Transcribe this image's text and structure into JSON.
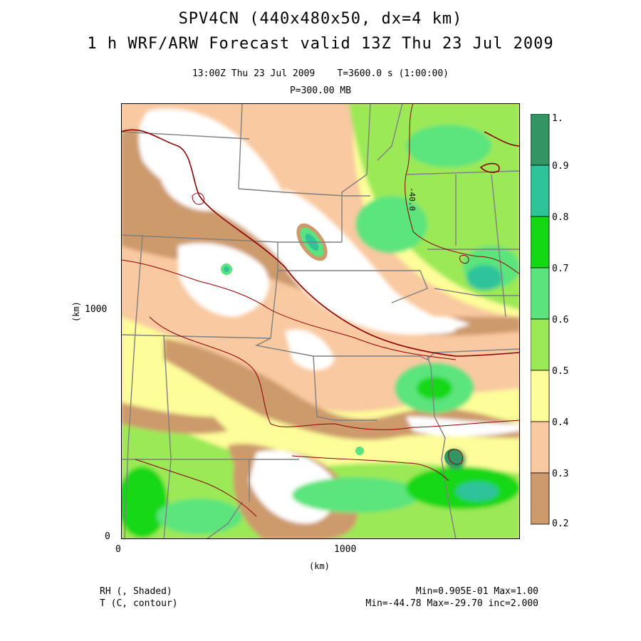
{
  "header": {
    "title_line1": "SPV4CN (440x480x50, dx=4 km)",
    "title_line2": "1 h WRF/ARW Forecast valid 13Z Thu 23 Jul 2009",
    "time_line": "13:00Z Thu 23 Jul 2009    T=3600.0 s (1:00:00)",
    "level_line": "P=300.00 MB"
  },
  "axes": {
    "y_unit": "(km)",
    "x_unit": "(km)",
    "y_ticks": [
      "1000",
      "0"
    ],
    "x_ticks": [
      "0",
      "1000"
    ]
  },
  "map": {
    "contour_label": "-40.0",
    "field_colors": {
      "missing": "#ffffff",
      "b02_03": "#cd9a6c",
      "b03_04": "#f9c9a1",
      "b04_05": "#fdfd9a",
      "b05_06": "#9be957",
      "b06_07": "#5be47d",
      "b07_08": "#14d814",
      "b08_09": "#2fc39a",
      "b09_10": "#359464"
    },
    "border_color": "#7f7f7f",
    "contour_color": "#8b0000"
  },
  "colorbar": {
    "labels": [
      "1.",
      "0.9",
      "0.8",
      "0.7",
      "0.6",
      "0.5",
      "0.4",
      "0.3",
      "0.2"
    ],
    "colors_top_to_bottom": [
      "#359464",
      "#2fc39a",
      "#14d814",
      "#5be47d",
      "#9be957",
      "#fdfd9a",
      "#f9c9a1",
      "#cd9a6c"
    ]
  },
  "footer": {
    "left_line1": "RH (, Shaded)",
    "left_line2": "T (C, contour)",
    "right_line1": "Min=0.905E-01 Max=1.00",
    "right_line2": "Min=-44.78 Max=-29.70 inc=2.000"
  }
}
